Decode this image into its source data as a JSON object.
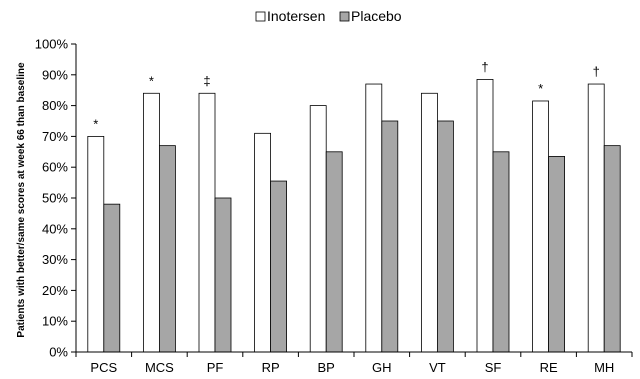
{
  "chart_data": {
    "type": "bar",
    "ylabel": "Patients with better/same scores at week 66 than baseline",
    "ylim": [
      0,
      100
    ],
    "yticks": [
      "0%",
      "10%",
      "20%",
      "30%",
      "40%",
      "50%",
      "60%",
      "70%",
      "80%",
      "90%",
      "100%"
    ],
    "categories": [
      "PCS",
      "MCS",
      "PF",
      "RP",
      "BP",
      "GH",
      "VT",
      "SF",
      "RE",
      "MH"
    ],
    "series": [
      {
        "name": "Inotersen",
        "values": [
          70,
          84,
          84,
          71,
          80,
          87,
          84,
          88.5,
          81.5,
          87
        ],
        "color": "#ffffff"
      },
      {
        "name": "Placebo",
        "values": [
          48,
          67,
          50,
          55.5,
          65,
          75,
          75,
          65,
          63.5,
          67
        ],
        "color": "#a6a6a6"
      }
    ],
    "annotations": [
      "*",
      "*",
      "‡",
      "",
      "",
      "",
      "",
      "†",
      "*",
      "†"
    ],
    "legend_position": "top-center",
    "grid": false
  }
}
